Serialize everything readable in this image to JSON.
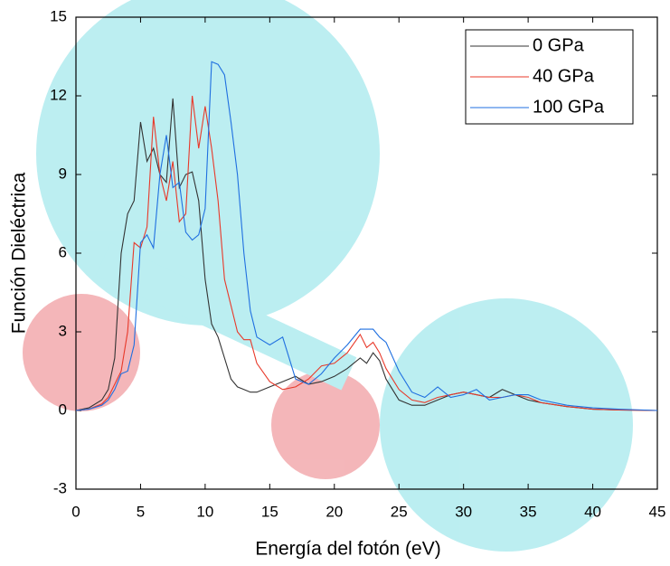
{
  "chart_data": {
    "type": "line",
    "xlabel": "Energía del fotón (eV)",
    "ylabel": "Función Dieléctrica",
    "x": [
      0,
      1,
      2,
      2.5,
      3,
      3.5,
      4,
      4.5,
      5,
      5.5,
      6,
      6.5,
      7,
      7.5,
      8,
      8.5,
      9,
      9.5,
      10,
      10.5,
      11,
      11.5,
      12,
      12.5,
      13,
      13.5,
      14,
      15,
      16,
      17,
      18,
      19,
      20,
      21,
      22,
      22.5,
      23,
      23.5,
      24,
      25,
      26,
      27,
      28,
      29,
      30,
      31,
      32,
      33,
      34,
      35,
      36,
      38,
      40,
      42,
      45
    ],
    "series": [
      {
        "name": "0 GPa",
        "color": "#333333",
        "values": [
          0,
          0.1,
          0.4,
          0.8,
          2,
          6,
          7.5,
          8,
          11,
          9.5,
          10,
          9,
          8.7,
          11.9,
          8.5,
          9,
          9.1,
          8,
          5,
          3.3,
          2.8,
          2,
          1.2,
          0.9,
          0.8,
          0.7,
          0.7,
          0.9,
          1.1,
          1.3,
          1.0,
          1.1,
          1.3,
          1.6,
          2.0,
          1.8,
          2.2,
          1.9,
          1.2,
          0.4,
          0.2,
          0.2,
          0.4,
          0.6,
          0.7,
          0.6,
          0.5,
          0.8,
          0.6,
          0.4,
          0.3,
          0.15,
          0.05,
          0.02,
          0
        ]
      },
      {
        "name": "40 GPa",
        "color": "#e8392a",
        "values": [
          0,
          0.05,
          0.25,
          0.5,
          1,
          1.5,
          3,
          6.4,
          6.2,
          7,
          11.2,
          9,
          8,
          9.5,
          7.2,
          7.5,
          12,
          10,
          11.6,
          10,
          8,
          5,
          4,
          3,
          2.7,
          2.7,
          1.8,
          1.1,
          0.8,
          0.9,
          1.2,
          1.7,
          1.8,
          2.2,
          2.9,
          2.4,
          2.6,
          2.2,
          1.6,
          0.8,
          0.4,
          0.3,
          0.5,
          0.6,
          0.7,
          0.6,
          0.5,
          0.5,
          0.6,
          0.5,
          0.3,
          0.15,
          0.05,
          0.02,
          0
        ]
      },
      {
        "name": "100 GPa",
        "color": "#1f6fe0",
        "values": [
          0,
          0.05,
          0.2,
          0.4,
          0.8,
          1.4,
          1.5,
          2.5,
          6.4,
          6.7,
          6.2,
          9,
          10.5,
          8.5,
          8.7,
          6.8,
          6.5,
          6.7,
          7.7,
          13.3,
          13.2,
          12.8,
          11,
          9,
          6,
          3.8,
          2.8,
          2.5,
          2.8,
          1.2,
          1.0,
          1.4,
          2.0,
          2.5,
          3.1,
          3.1,
          3.1,
          2.8,
          2.6,
          1.5,
          0.7,
          0.5,
          0.9,
          0.5,
          0.6,
          0.8,
          0.4,
          0.5,
          0.6,
          0.6,
          0.4,
          0.2,
          0.1,
          0.05,
          0
        ]
      }
    ],
    "xlim": [
      0,
      45
    ],
    "xticks": [
      0,
      5,
      10,
      15,
      20,
      25,
      30,
      35,
      40,
      45
    ],
    "ylim": [
      -3,
      15
    ],
    "yticks": [
      -3,
      0,
      3,
      6,
      9,
      12,
      15
    ],
    "legend": "upper-right"
  }
}
